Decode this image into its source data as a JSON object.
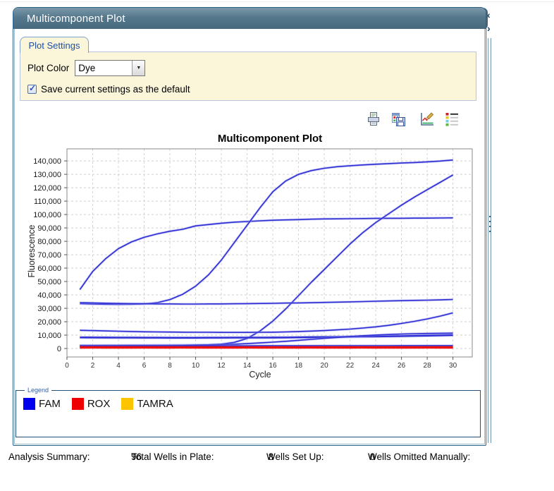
{
  "window": {
    "title": "Multicomponent Plot"
  },
  "side_controls": {
    "collapse_left_icon": "‹",
    "collapse_right_icon": "›"
  },
  "settings": {
    "tab_label": "Plot Settings",
    "plot_color_label": "Plot Color",
    "plot_color_value": "Dye",
    "dropdown_arrow_icon": "▼",
    "save_default_label": "Save current settings as the default",
    "save_default_checked": true,
    "check_mark_icon": "✓"
  },
  "toolbar": {
    "icons": [
      "print-plot-icon",
      "save-plot-image-icon",
      "plot-properties-icon",
      "show-legend-icon"
    ]
  },
  "chart_data": {
    "type": "line",
    "title": "Multicomponent Plot",
    "xlabel": "Cycle",
    "ylabel": "Fluorescence",
    "xlim": [
      0,
      31.5
    ],
    "ylim": [
      -6300,
      149000
    ],
    "x_ticks": [
      0,
      2,
      4,
      6,
      8,
      10,
      12,
      14,
      16,
      18,
      20,
      22,
      24,
      26,
      28,
      30
    ],
    "y_ticks": [
      0,
      10000,
      20000,
      30000,
      40000,
      50000,
      60000,
      70000,
      80000,
      90000,
      100000,
      110000,
      120000,
      130000,
      140000
    ],
    "grid": true,
    "legend_position": "bottom",
    "x": [
      1,
      2,
      3,
      4,
      5,
      6,
      7,
      8,
      9,
      10,
      11,
      12,
      13,
      14,
      15,
      16,
      17,
      18,
      19,
      20,
      21,
      22,
      23,
      24,
      25,
      26,
      27,
      28,
      29,
      30
    ],
    "series": [
      {
        "name": "TAMRA-a",
        "dye": "TAMRA",
        "color": "#fcc800",
        "width": 2.6,
        "halo": false,
        "values": [
          1600,
          1580,
          1600,
          1620,
          1600,
          1590,
          1610,
          1600,
          1580,
          1600,
          1620,
          1600,
          1600,
          1590,
          1610,
          1600,
          1600,
          1620,
          1590,
          1600,
          1610,
          1600,
          1590,
          1600,
          1620,
          1600,
          1600,
          1590,
          1610,
          1600
        ]
      },
      {
        "name": "TAMRA-b",
        "dye": "TAMRA",
        "color": "#fcc800",
        "width": 2.6,
        "halo": false,
        "values": [
          1350,
          1370,
          1350,
          1330,
          1350,
          1360,
          1340,
          1350,
          1370,
          1350,
          1330,
          1350,
          1350,
          1360,
          1340,
          1350,
          1350,
          1330,
          1360,
          1350,
          1340,
          1350,
          1360,
          1350,
          1330,
          1350,
          1350,
          1360,
          1340,
          1350
        ]
      },
      {
        "name": "FAM-1",
        "dye": "FAM",
        "color": "#2d2dd4",
        "width": 1.6,
        "halo": true,
        "values": [
          44000,
          57500,
          67000,
          74500,
          79500,
          83000,
          85500,
          87500,
          89000,
          91500,
          92500,
          93500,
          94300,
          94800,
          95300,
          95700,
          96000,
          96200,
          96500,
          96700,
          96800,
          96900,
          97000,
          97100,
          97200,
          97200,
          97300,
          97300,
          97400,
          97500
        ]
      },
      {
        "name": "FAM-2",
        "dye": "FAM",
        "color": "#2d2dd4",
        "width": 1.6,
        "halo": true,
        "values": [
          33500,
          33200,
          33000,
          32900,
          33000,
          33300,
          34200,
          36500,
          40500,
          46500,
          55000,
          66000,
          79000,
          92000,
          105000,
          117000,
          125000,
          130000,
          132800,
          134500,
          135700,
          136400,
          137000,
          137500,
          138000,
          138400,
          138800,
          139300,
          139900,
          140700
        ]
      },
      {
        "name": "FAM-3",
        "dye": "FAM",
        "color": "#2d2dd4",
        "width": 1.6,
        "halo": true,
        "values": [
          2400,
          2400,
          2400,
          2400,
          2450,
          2450,
          2500,
          2500,
          2550,
          2600,
          2800,
          3300,
          4600,
          7500,
          13000,
          20500,
          29500,
          39500,
          49500,
          59000,
          68500,
          78000,
          86500,
          94000,
          100500,
          107000,
          113000,
          118500,
          124000,
          129500
        ]
      },
      {
        "name": "FAM-4",
        "dye": "FAM",
        "color": "#2d2dd4",
        "width": 1.6,
        "halo": true,
        "values": [
          34200,
          34000,
          33800,
          33600,
          33500,
          33400,
          33300,
          33300,
          33200,
          33200,
          33300,
          33300,
          33400,
          33500,
          33600,
          33700,
          33900,
          34000,
          34200,
          34400,
          34600,
          34800,
          35000,
          35300,
          35500,
          35700,
          35900,
          36100,
          36300,
          36600
        ]
      },
      {
        "name": "FAM-5",
        "dye": "FAM",
        "color": "#2d2dd4",
        "width": 1.6,
        "halo": true,
        "values": [
          13600,
          13400,
          13100,
          12900,
          12700,
          12500,
          12400,
          12300,
          12200,
          12100,
          12100,
          12000,
          12000,
          12000,
          12100,
          12200,
          12400,
          12700,
          13000,
          13400,
          13900,
          14500,
          15300,
          16200,
          17300,
          18700,
          20300,
          22100,
          24200,
          26600
        ]
      },
      {
        "name": "FAM-6",
        "dye": "FAM",
        "color": "#2d2dd4",
        "width": 2.4,
        "halo": true,
        "values": [
          8300,
          8250,
          8200,
          8150,
          8100,
          8050,
          8050,
          8000,
          8000,
          8000,
          8050,
          8050,
          8100,
          8100,
          8150,
          8200,
          8250,
          8350,
          8450,
          8550,
          8650,
          8750,
          8900,
          9000,
          9150,
          9300,
          9450,
          9600,
          9800,
          10000
        ]
      },
      {
        "name": "FAM-7",
        "dye": "FAM",
        "color": "#2d2dd4",
        "width": 1.6,
        "halo": true,
        "values": [
          2250,
          2250,
          2300,
          2300,
          2350,
          2350,
          2400,
          2450,
          2500,
          2600,
          2750,
          2950,
          3250,
          3650,
          4150,
          4750,
          5400,
          6100,
          6850,
          7600,
          8300,
          8950,
          9550,
          10050,
          10450,
          10800,
          11050,
          11250,
          11400,
          11500
        ]
      },
      {
        "name": "FAM-8",
        "dye": "FAM",
        "color": "#2d2dd4",
        "width": 1.6,
        "halo": true,
        "values": [
          1900,
          1900,
          1900,
          1900,
          1950,
          1950,
          1950,
          1950,
          2000,
          2000,
          2000,
          2000,
          2000,
          2000,
          2050,
          2050,
          2050,
          2050,
          2050,
          2100,
          2100,
          2100,
          2100,
          2100,
          2100,
          2150,
          2150,
          2150,
          2150,
          2150
        ]
      },
      {
        "name": "ROX-a",
        "dye": "ROX",
        "color": "#f01111",
        "width": 2.6,
        "halo": false,
        "values": [
          1050,
          1030,
          1050,
          1070,
          1050,
          1040,
          1060,
          1050,
          1030,
          1050,
          1070,
          1050,
          1050,
          1040,
          1060,
          1050,
          1050,
          1070,
          1040,
          1050,
          1060,
          1050,
          1040,
          1050,
          1070,
          1050,
          1050,
          1040,
          1060,
          1050
        ]
      },
      {
        "name": "ROX-b",
        "dye": "ROX",
        "color": "#f01111",
        "width": 2.6,
        "halo": false,
        "values": [
          620,
          640,
          620,
          600,
          620,
          630,
          610,
          620,
          640,
          620,
          600,
          620,
          620,
          630,
          610,
          620,
          620,
          600,
          630,
          620,
          610,
          620,
          630,
          620,
          600,
          620,
          620,
          630,
          610,
          620
        ]
      }
    ]
  },
  "legend": {
    "title": "Legend",
    "items": [
      {
        "label": "FAM",
        "color": "#0000ee"
      },
      {
        "label": "ROX",
        "color": "#ee0000"
      },
      {
        "label": "TAMRA",
        "color": "#fdc400"
      }
    ]
  },
  "status": {
    "analysis_summary_label": "Analysis Summary:",
    "items": [
      {
        "label": "Total Wells in Plate:",
        "value": "96"
      },
      {
        "label": "Wells Set Up:",
        "value": "8"
      },
      {
        "label": "Wells Omitted Manually:",
        "value": "0"
      }
    ]
  }
}
